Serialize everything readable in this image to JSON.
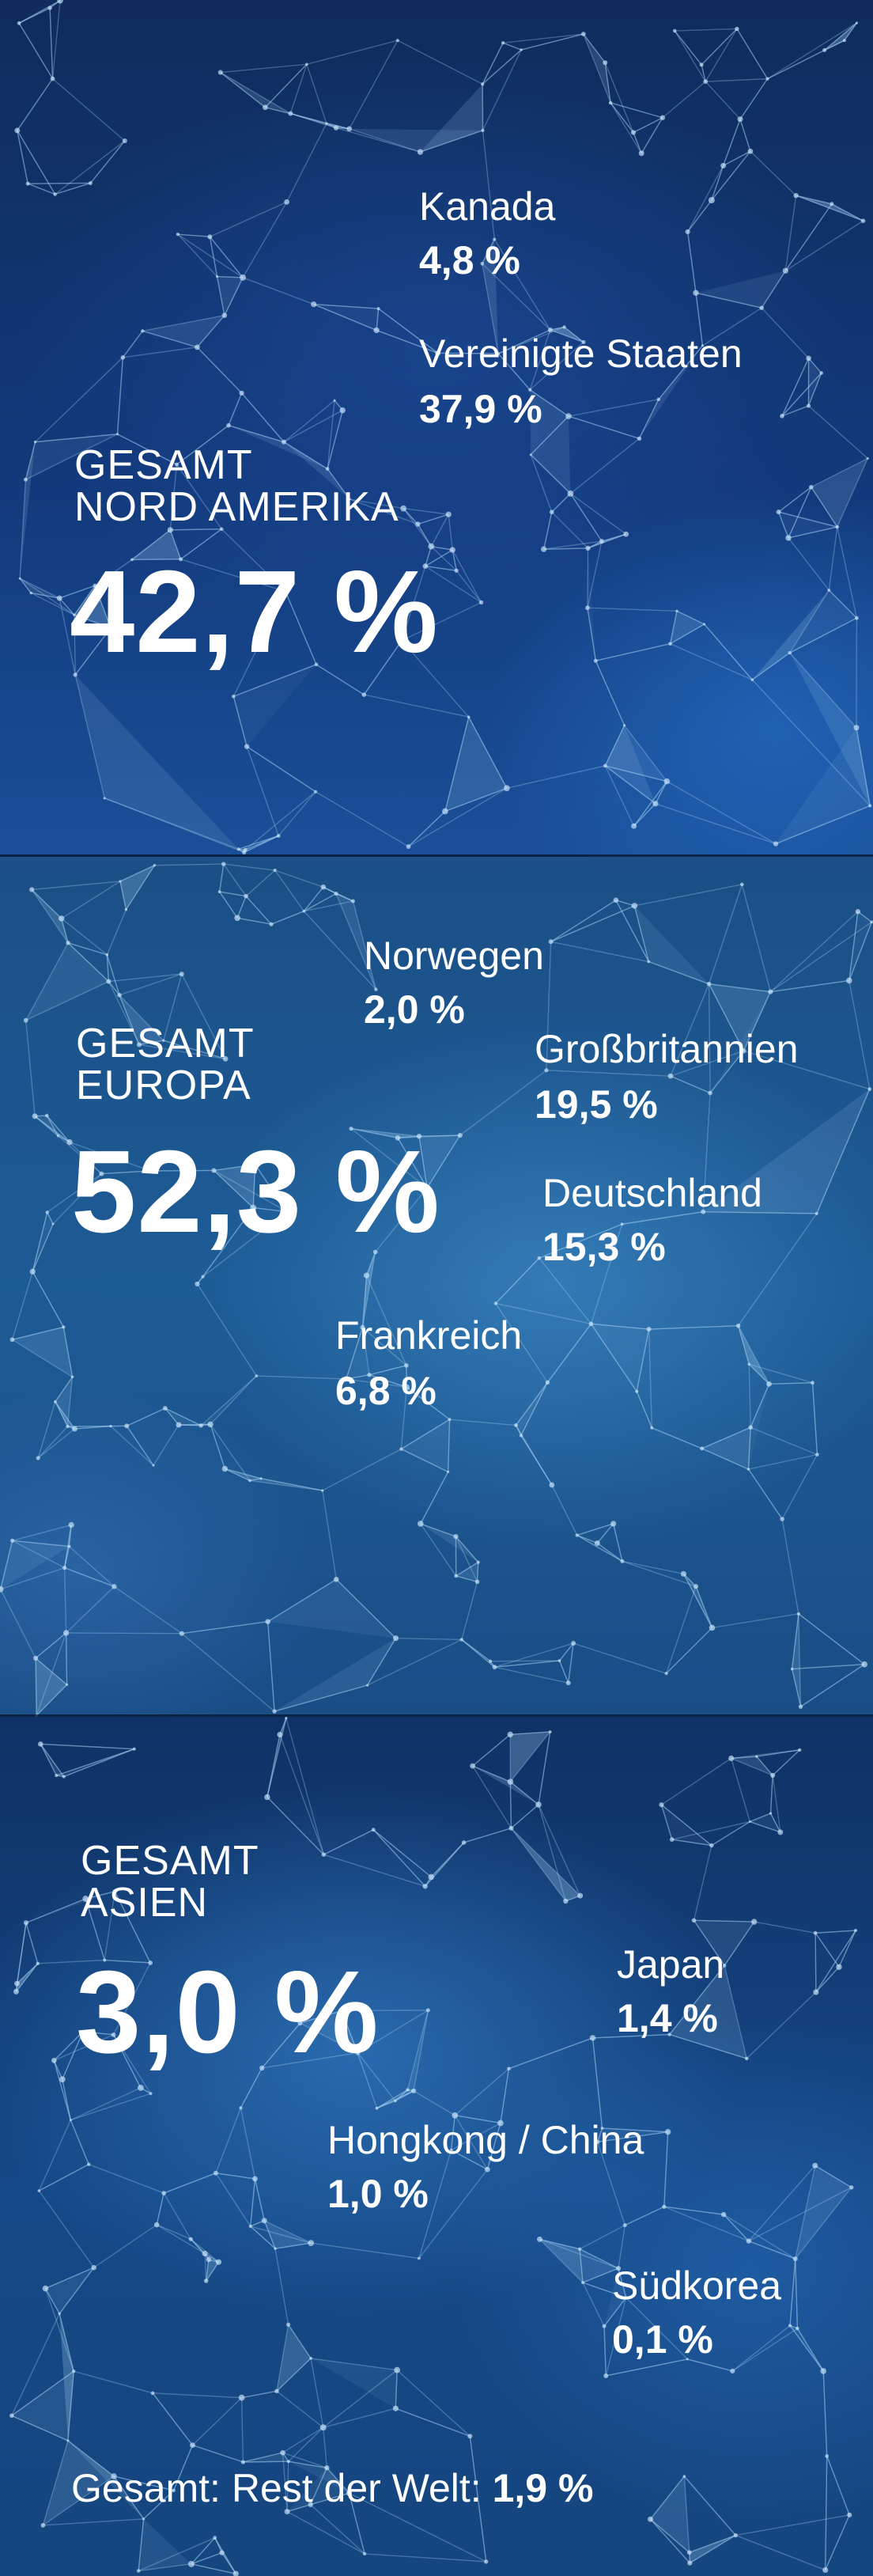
{
  "regions": {
    "north_america": {
      "total_line1": "GESAMT",
      "total_line2": "NORD AMERIKA",
      "total_value": "42,7 %",
      "countries": [
        {
          "name": "Kanada",
          "value": "4,8 %"
        },
        {
          "name": "Vereinigte Staaten",
          "value": "37,9 %"
        }
      ]
    },
    "europe": {
      "total_line1": "GESAMT",
      "total_line2": "EUROPA",
      "total_value": "52,3 %",
      "countries": [
        {
          "name": "Norwegen",
          "value": "2,0 %"
        },
        {
          "name": "Großbritannien",
          "value": "19,5 %"
        },
        {
          "name": "Deutschland",
          "value": "15,3 %"
        },
        {
          "name": "Frankreich",
          "value": "6,8 %"
        }
      ]
    },
    "asia": {
      "total_line1": "GESAMT",
      "total_line2": "ASIEN",
      "total_value": "3,0 %",
      "countries": [
        {
          "name": "Japan",
          "value": "1,4 %"
        },
        {
          "name": "Hongkong / China",
          "value": "1,0 %"
        },
        {
          "name": "Südkorea",
          "value": "0,1 %"
        }
      ]
    }
  },
  "rest_of_world": {
    "label": "Gesamt: Rest der Welt: ",
    "value": "1,9 %"
  },
  "colors": {
    "text": "#ffffff",
    "network_line": "#a8d4f5",
    "network_node": "#cfe9ff"
  }
}
